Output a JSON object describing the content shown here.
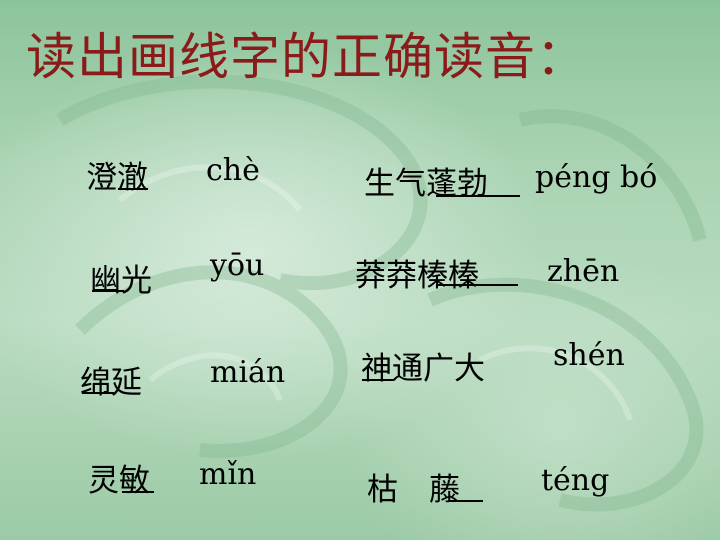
{
  "title": "读出画线字的正确读音：",
  "items": [
    {
      "word": "澄澈",
      "pinyin": "chè"
    },
    {
      "word": "生气蓬勃",
      "pinyin": "péng bó"
    },
    {
      "word": "幽光",
      "pinyin": "yōu"
    },
    {
      "word": "莽莽榛榛",
      "pinyin": "zhēn"
    },
    {
      "word": "绵延",
      "pinyin": "mián"
    },
    {
      "word": "神通广大",
      "pinyin": "shén"
    },
    {
      "word": "灵敏",
      "pinyin": "mǐn"
    },
    {
      "word": "枯　藤",
      "pinyin": "téng"
    }
  ],
  "colors": {
    "title": "#8b1a1a",
    "text": "#000000",
    "background": "#a9d3b3"
  }
}
